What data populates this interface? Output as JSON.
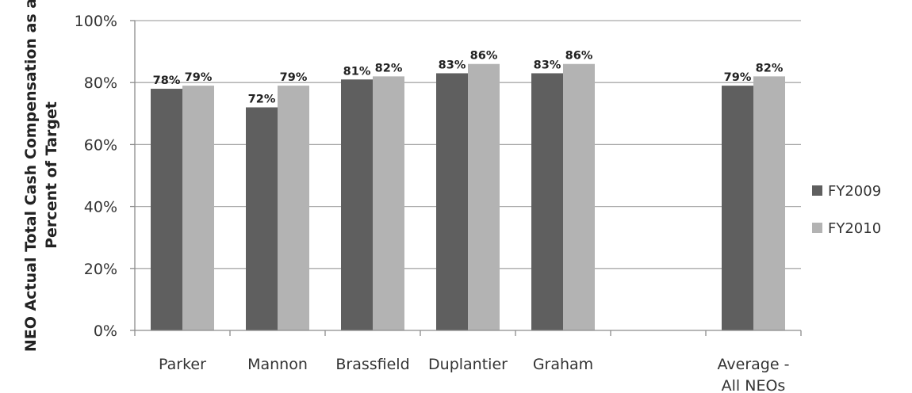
{
  "chart_data": {
    "type": "bar",
    "title": "",
    "xlabel": "",
    "ylabel_lines": [
      "NEO Actual Total Cash Compensation as a",
      "Percent of Target"
    ],
    "categories": [
      [
        "Parker"
      ],
      [
        "Mannon"
      ],
      [
        "Brassfield"
      ],
      [
        "Duplantier"
      ],
      [
        "Graham"
      ],
      [
        ""
      ],
      [
        "Average -",
        "All NEOs"
      ]
    ],
    "series": [
      {
        "name": "FY2009",
        "color": "#5f5f5f",
        "values": [
          78,
          72,
          81,
          83,
          83,
          null,
          79
        ],
        "labels": [
          "78%",
          "72%",
          "81%",
          "83%",
          "83%",
          "",
          "79%"
        ]
      },
      {
        "name": "FY2010",
        "color": "#b3b3b3",
        "values": [
          79,
          79,
          82,
          86,
          86,
          null,
          82
        ],
        "labels": [
          "79%",
          "79%",
          "82%",
          "86%",
          "86%",
          "",
          "82%"
        ]
      }
    ],
    "ylim": [
      0,
      100
    ],
    "yticks": [
      0,
      20,
      40,
      60,
      80,
      100
    ],
    "ytick_labels": [
      "0%",
      "20%",
      "40%",
      "60%",
      "80%",
      "100%"
    ],
    "grid": true,
    "legend_position": "right"
  }
}
